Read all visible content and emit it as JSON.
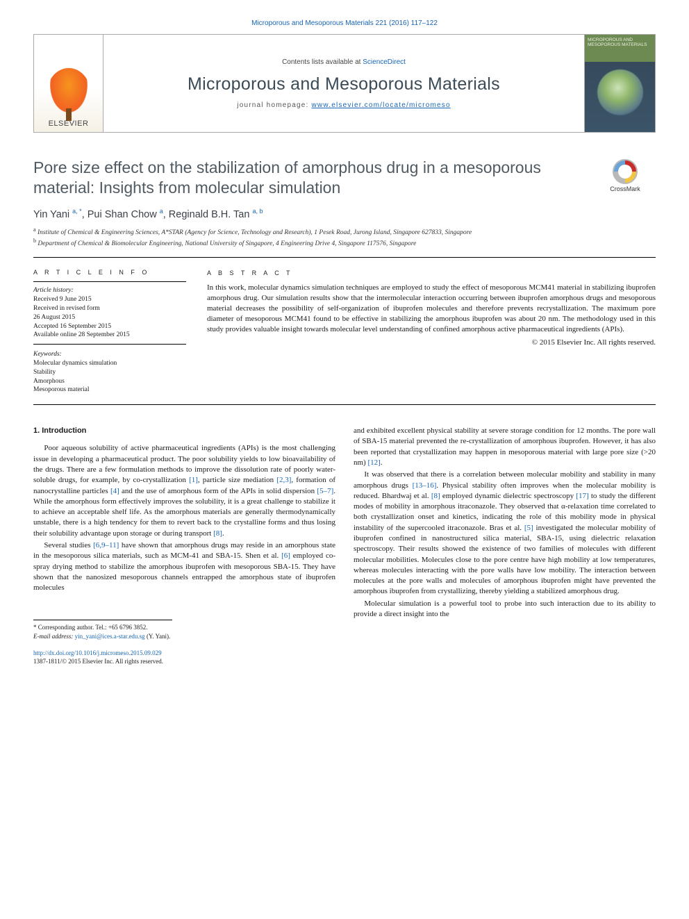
{
  "header": {
    "journal_ref_link": "Microporous and Mesoporous Materials 221 (2016) 117–122",
    "contents_prefix": "Contents lists available at ",
    "contents_link": "ScienceDirect",
    "journal_title": "Microporous and Mesoporous Materials",
    "homepage_prefix": "journal homepage: ",
    "homepage_link": "www.elsevier.com/locate/micromeso",
    "publisher_name": "ELSEVIER",
    "cover_text": "MICROPOROUS AND MESOPOROUS MATERIALS"
  },
  "crossmark_label": "CrossMark",
  "article": {
    "title": "Pore size effect on the stabilization of amorphous drug in a mesoporous material: Insights from molecular simulation",
    "authors_html": "Yin Yani <sup>a, *</sup>, Pui Shan Chow <sup>a</sup>, Reginald B.H. Tan <sup>a, b</sup>",
    "affiliations": {
      "a": "Institute of Chemical & Engineering Sciences, A*STAR (Agency for Science, Technology and Research), 1 Pesek Road, Jurong Island, Singapore 627833, Singapore",
      "b": "Department of Chemical & Biomolecular Engineering, National University of Singapore, 4 Engineering Drive 4, Singapore 117576, Singapore"
    }
  },
  "info": {
    "heading": "A R T I C L E   I N F O",
    "history_label": "Article history:",
    "history_lines": [
      "Received 9 June 2015",
      "Received in revised form",
      "26 August 2015",
      "Accepted 16 September 2015",
      "Available online 28 September 2015"
    ],
    "keywords_label": "Keywords:",
    "keywords": [
      "Molecular dynamics simulation",
      "Stability",
      "Amorphous",
      "Mesoporous material"
    ]
  },
  "abstract": {
    "heading": "A B S T R A C T",
    "text": "In this work, molecular dynamics simulation techniques are employed to study the effect of mesoporous MCM41 material in stabilizing ibuprofen amorphous drug. Our simulation results show that the intermolecular interaction occurring between ibuprofen amorphous drugs and mesoporous material decreases the possibility of self-organization of ibuprofen molecules and therefore prevents recrystallization. The maximum pore diameter of mesoporous MCM41 found to be effective in stabilizing the amorphous ibuprofen was about 20 nm. The methodology used in this study provides valuable insight towards molecular level understanding of confined amorphous active pharmaceutical ingredients (APIs).",
    "copyright": "© 2015 Elsevier Inc. All rights reserved."
  },
  "body": {
    "left": {
      "section_heading": "1. Introduction"
    }
  },
  "footer": {
    "corresponding_label": "* Corresponding author. Tel.: +65 6796 3852.",
    "email_label": "E-mail address:",
    "email": "yin_yani@ices.a-star.edu.sg",
    "email_suffix": " (Y. Yani).",
    "doi": "http://dx.doi.org/10.1016/j.micromeso.2015.09.029",
    "copyright_line": "1387-1811/© 2015 Elsevier Inc. All rights reserved."
  },
  "colors": {
    "link": "#1765b3",
    "title_grey": "#505a62",
    "journal_grey": "#3a4a56"
  },
  "typography": {
    "body_pt": 11,
    "title_pt": 23,
    "journal_title_pt": 25,
    "small_pt": 9.5
  }
}
